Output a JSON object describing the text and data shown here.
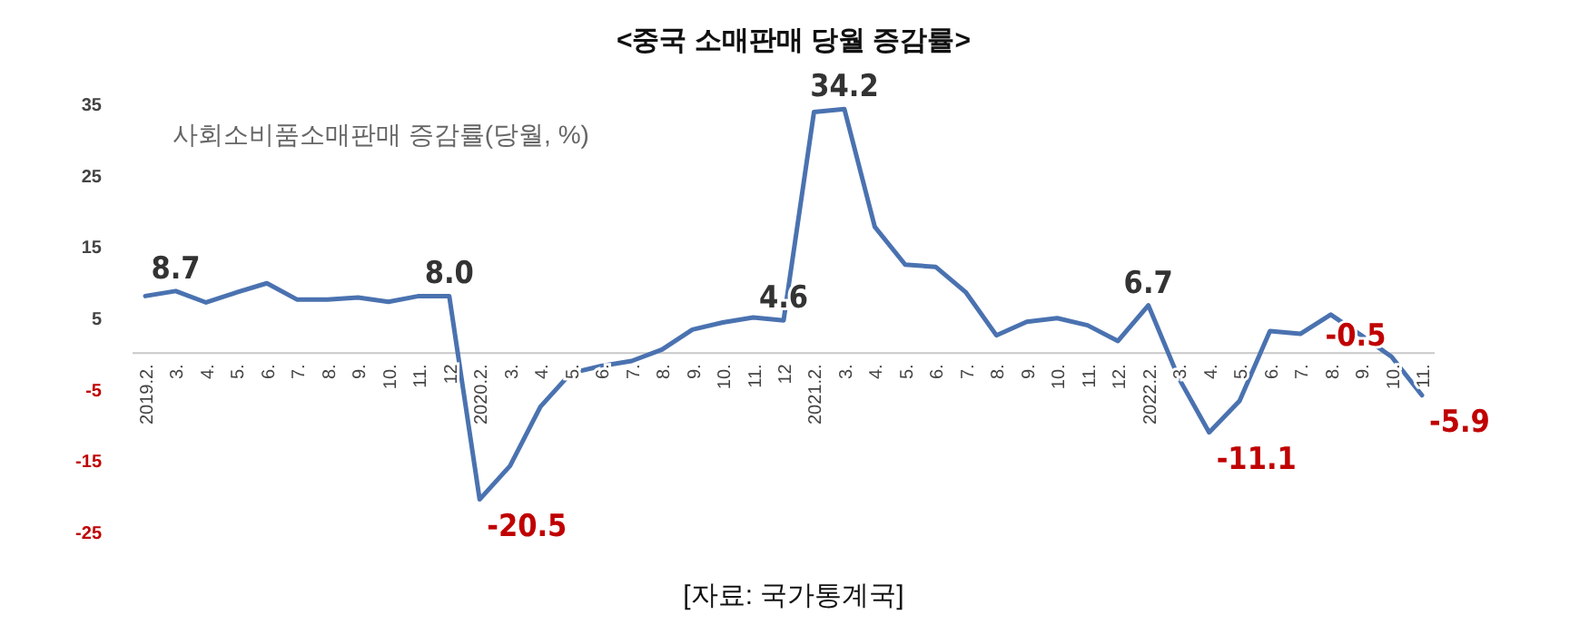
{
  "chart_data": {
    "type": "line",
    "title": "<중국 소매판매 당월 증감률>",
    "categories": [
      "2019.2.",
      "3.",
      "4.",
      "5.",
      "6.",
      "7.",
      "8.",
      "9.",
      "10.",
      "11.",
      "12",
      "2020.2.",
      "3.",
      "4.",
      "5.",
      "6.",
      "7.",
      "8.",
      "9.",
      "10.",
      "11.",
      "12",
      "2021.2.",
      "3.",
      "4.",
      "5.",
      "6.",
      "7.",
      "8.",
      "9.",
      "10.",
      "11.",
      "12.",
      "2022.2.",
      "3.",
      "4.",
      "5.",
      "6.",
      "7.",
      "8.",
      "9.",
      "10.",
      "11."
    ],
    "series": [
      {
        "color": "#4a72b0",
        "values": [
          8.0,
          8.7,
          7.1,
          8.5,
          9.8,
          7.5,
          7.5,
          7.8,
          7.2,
          8.0,
          8.0,
          -20.5,
          -15.8,
          -7.5,
          -2.8,
          -1.8,
          -1.1,
          0.5,
          3.3,
          4.3,
          5.0,
          4.6,
          33.8,
          34.2,
          17.7,
          12.4,
          12.1,
          8.5,
          2.5,
          4.4,
          4.9,
          3.9,
          1.7,
          6.7,
          -3.5,
          -11.1,
          -6.7,
          3.1,
          2.7,
          5.4,
          2.5,
          -0.5,
          -5.9
        ],
        "value_labels": [
          null,
          "8.7",
          null,
          null,
          null,
          null,
          null,
          null,
          null,
          null,
          "8.0",
          "-20.5",
          null,
          null,
          null,
          null,
          null,
          null,
          null,
          null,
          null,
          "4.6",
          null,
          "34.2",
          null,
          null,
          null,
          null,
          null,
          null,
          null,
          null,
          null,
          "6.7",
          null,
          "-11.1",
          null,
          null,
          null,
          null,
          null,
          "-0.5",
          "-5.9"
        ]
      }
    ],
    "ylim": [
      -25,
      35
    ],
    "yticks": [
      -25,
      -15,
      -5,
      5,
      15,
      25,
      35
    ],
    "grid": false,
    "marker": "none",
    "line_style": "solid",
    "annotations": [
      "사회소비품소매판매 증감률(당월, %)",
      "[자료: 국가통계국]"
    ]
  }
}
